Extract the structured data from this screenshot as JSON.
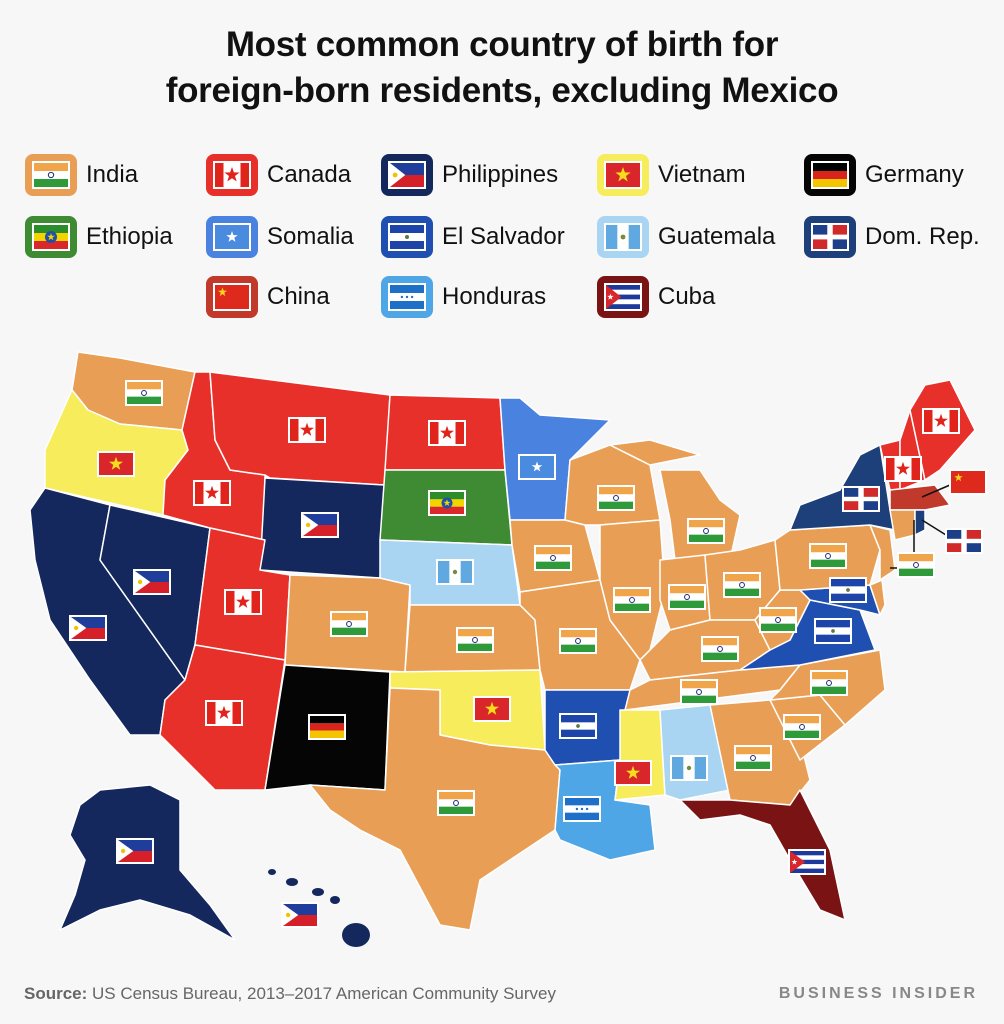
{
  "title_line1": "Most common country of birth for",
  "title_line2": "foreign-born residents, excluding Mexico",
  "legend": [
    {
      "name": "India",
      "color": "#e89f55"
    },
    {
      "name": "Canada",
      "color": "#e8302a"
    },
    {
      "name": "Philippines",
      "color": "#15285e"
    },
    {
      "name": "Vietnam",
      "color": "#f7ec5c"
    },
    {
      "name": "Germany",
      "color": "#050505"
    },
    {
      "name": "Ethiopia",
      "color": "#3e8b34"
    },
    {
      "name": "Somalia",
      "color": "#4a82e0"
    },
    {
      "name": "El Salvador",
      "color": "#1f4fb0"
    },
    {
      "name": "Guatemala",
      "color": "#a9d4f2"
    },
    {
      "name": "Dom. Rep.",
      "color": "#1d3f7a"
    },
    {
      "name": "China",
      "color": "#c0392b"
    },
    {
      "name": "Honduras",
      "color": "#4ea6e6"
    },
    {
      "name": "Cuba",
      "color": "#7a1414"
    }
  ],
  "states": {
    "WA": "India",
    "OR": "Vietnam",
    "CA": "Philippines",
    "NV": "Philippines",
    "ID": "Canada",
    "MT": "Canada",
    "WY": "Philippines",
    "UT": "Canada",
    "AZ": "Canada",
    "CO": "India",
    "NM": "Germany",
    "ND": "Canada",
    "SD": "Ethiopia",
    "NE": "Guatemala",
    "KS": "India",
    "OK": "Vietnam",
    "TX": "India",
    "MN": "Somalia",
    "IA": "India",
    "MO": "India",
    "AR": "El Salvador",
    "LA": "Honduras",
    "WI": "India",
    "IL": "India",
    "MI": "India",
    "IN": "India",
    "OH": "India",
    "KY": "India",
    "TN": "India",
    "MS": "Vietnam",
    "AL": "Guatemala",
    "GA": "India",
    "FL": "Cuba",
    "SC": "India",
    "NC": "India",
    "VA": "El Salvador",
    "WV": "India",
    "MD": "El Salvador",
    "DE": "India",
    "PA": "India",
    "NJ": "India",
    "NY": "Dom. Rep.",
    "CT": "India",
    "RI": "Dom. Rep.",
    "MA": "China",
    "VT": "Canada",
    "NH": "Canada",
    "ME": "Canada",
    "AK": "Philippines",
    "HI": "Philippines"
  },
  "source_label": "Source:",
  "source_text": " US Census Bureau, 2013–2017 American Community Survey",
  "brand": "BUSINESS INSIDER"
}
